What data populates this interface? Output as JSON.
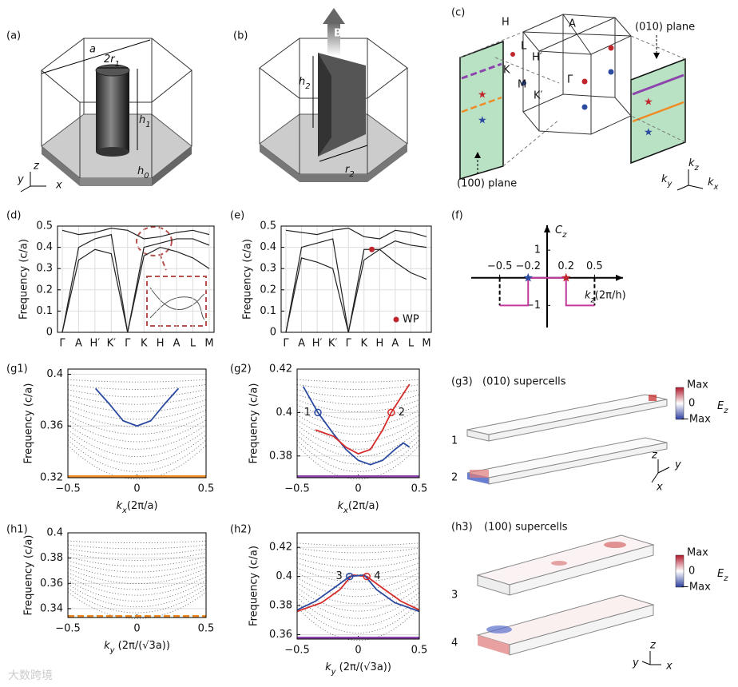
{
  "figure": {
    "a": {
      "label": "(a)",
      "lattice": "a",
      "diameter": {
        "main": "2r",
        "sub": "1"
      },
      "height": {
        "main": "h",
        "sub": "1"
      },
      "base": {
        "main": "h",
        "sub": "0"
      },
      "axis_z": "z",
      "axis_y": "y",
      "axis_x": "x"
    },
    "b": {
      "label": "(b)",
      "field": "B",
      "height": {
        "main": "h",
        "sub": "2"
      },
      "radius": {
        "main": "r",
        "sub": "2"
      }
    },
    "c": {
      "label": "(c)",
      "H": "H",
      "A": "A",
      "H_prime": "H′",
      "K": "K",
      "M": "M",
      "Gamma": "Γ",
      "K_prime": "K′",
      "L": "L",
      "plane_010": "(010) plane",
      "plane_100": "(100) plane",
      "kz": {
        "main": "k",
        "sub": "z"
      },
      "ky": {
        "main": "k",
        "sub": "y"
      },
      "kx": {
        "main": "k",
        "sub": "x"
      }
    },
    "g3": {
      "label": "(g3)",
      "title": "(010) supercells",
      "cell_1": "1",
      "cell_2": "2",
      "cb_max": "Max",
      "cb_zero": "0",
      "cb_min": "−Max",
      "field": {
        "main": "E",
        "sub": "z"
      },
      "axis_z": "z",
      "axis_y": "y",
      "axis_x": "x"
    },
    "h3": {
      "label": "(h3)",
      "title": "(100) supercells",
      "cell_3": "3",
      "cell_4": "4",
      "cb_max": "Max",
      "cb_zero": "0",
      "cb_min": "−Max",
      "field": {
        "main": "E",
        "sub": "z"
      },
      "axis_z": "z",
      "axis_y": "y",
      "axis_x": "x"
    },
    "watermark": "大数跨境"
  },
  "chart_data": [
    {
      "type": "band",
      "panel_label": "(d)",
      "ylabel": "Frequency (c/a)",
      "categories": [
        "Γ",
        "A",
        "H′",
        "K′",
        "Γ",
        "K",
        "H",
        "A",
        "L",
        "M"
      ],
      "ylim": [
        0,
        0.5
      ],
      "yticks": [
        0,
        0.1,
        0.2,
        0.3,
        0.4,
        0.5
      ],
      "grid": true,
      "series": [
        {
          "color": "#222222",
          "values": [
            0,
            0.34,
            0.39,
            0.37,
            0,
            0.36,
            0.4,
            0.38,
            0.35,
            0.3
          ]
        },
        {
          "color": "#222222",
          "values": [
            0,
            0.4,
            0.44,
            0.46,
            0,
            0.4,
            0.42,
            0.44,
            0.44,
            0.41
          ]
        },
        {
          "color": "#222222",
          "values": [
            0.48,
            0.46,
            0.47,
            0.49,
            0.48,
            0.44,
            0.45,
            0.47,
            0.48,
            0.46
          ]
        }
      ]
    },
    {
      "type": "band",
      "panel_label": "(e)",
      "ylabel": "Frequency (c/a)",
      "categories": [
        "Γ",
        "A",
        "H′",
        "K′",
        "Γ",
        "K",
        "H",
        "A",
        "L",
        "M"
      ],
      "ylim": [
        0,
        0.5
      ],
      "yticks": [
        0,
        0.1,
        0.2,
        0.3,
        0.4,
        0.5
      ],
      "grid": true,
      "series": [
        {
          "color": "#222222",
          "values": [
            0,
            0.35,
            0.33,
            0.3,
            0,
            0.34,
            0.39,
            0.33,
            0.28,
            0.25
          ]
        },
        {
          "color": "#222222",
          "values": [
            0,
            0.4,
            0.42,
            0.44,
            0,
            0.39,
            0.39,
            0.43,
            0.41,
            0.4
          ]
        },
        {
          "color": "#222222",
          "values": [
            0.48,
            0.47,
            0.46,
            0.48,
            0.49,
            0.45,
            0.44,
            0.48,
            0.47,
            0.45
          ]
        }
      ],
      "wp": {
        "name": "WP",
        "color": "#c0272d",
        "value": 0.39
      }
    },
    {
      "type": "step",
      "panel_label": "(f)",
      "ylabel": {
        "main": "C",
        "sub": "z"
      },
      "xlabel": {
        "main": "k",
        "sub": "z",
        "rest": "(2π/h)"
      },
      "xlim": [
        -0.8,
        0.8
      ],
      "ylim": [
        -1.8,
        1.9
      ],
      "xticks": [
        {
          "value": -0.5,
          "label": "−0.5"
        },
        {
          "value": -0.2,
          "label": "−0.2"
        },
        0.2,
        0.5
      ],
      "yticks": [
        1,
        {
          "value": -1,
          "label": "−1"
        }
      ],
      "series": [
        {
          "color": "#c2399b",
          "x": [
            -0.5,
            -0.2,
            -0.2,
            0.2,
            0.2,
            0.5
          ],
          "values": [
            -1,
            -1,
            0,
            0,
            -1,
            -1
          ]
        }
      ],
      "marker": "star",
      "markers": [
        {
          "x": -0.2,
          "y": 0,
          "color": "#2b4aa0"
        },
        {
          "x": 0.2,
          "y": 0,
          "color": "#c0272d"
        }
      ]
    },
    {
      "type": "dispersion",
      "panel_label": "(g1)",
      "ylabel": "Frequency (c/a)",
      "xlabel": {
        "main": "k",
        "sub": "x",
        "rest": "(2π/a)"
      },
      "xlim": [
        -0.5,
        0.5
      ],
      "ylim": [
        0.32,
        0.404
      ],
      "xticks": [
        {
          "value": -0.5,
          "label": "−0.5"
        },
        0,
        0.5
      ],
      "yticks": [
        0.32,
        0.36,
        0.4
      ],
      "grid": true,
      "edge_color": "#f08a24",
      "edge_dashed": false,
      "series": [
        {
          "color": "#2b4aa0",
          "x": [
            -0.3,
            -0.2,
            -0.1,
            0,
            0.1,
            0.2,
            0.3
          ],
          "values": [
            0.389,
            0.377,
            0.364,
            0.36,
            0.364,
            0.377,
            0.389
          ]
        }
      ]
    },
    {
      "type": "dispersion",
      "panel_label": "(g2)",
      "ylabel": "Frequency (c/a)",
      "xlabel": {
        "main": "k",
        "sub": "x",
        "rest": "(2π/a)"
      },
      "xlim": [
        -0.5,
        0.5
      ],
      "ylim": [
        0.37,
        0.42
      ],
      "xticks": [
        {
          "value": -0.5,
          "label": "−0.5"
        },
        0,
        0.5
      ],
      "yticks": [
        0.38,
        0.4,
        0.42
      ],
      "grid": true,
      "edge_color": "#8e44ad",
      "edge_dashed": false,
      "series": [
        {
          "color": "#2b4aa0",
          "x": [
            -0.45,
            -0.33,
            -0.2,
            -0.1,
            0,
            0.1,
            0.2,
            0.3,
            0.37,
            0.42
          ],
          "values": [
            0.412,
            0.4,
            0.39,
            0.383,
            0.378,
            0.376,
            0.378,
            0.383,
            0.386,
            0.384
          ]
        },
        {
          "color": "#d62b2b",
          "x": [
            -0.35,
            -0.2,
            -0.1,
            0,
            0.1,
            0.2,
            0.27,
            0.35,
            0.42
          ],
          "values": [
            0.392,
            0.389,
            0.384,
            0.381,
            0.383,
            0.392,
            0.4,
            0.407,
            0.413
          ]
        }
      ],
      "marker": "circle",
      "markers": [
        {
          "label": "1",
          "x": -0.33,
          "y": 0.4,
          "color": "#2b4aa0"
        },
        {
          "label": "2",
          "x": 0.27,
          "y": 0.4,
          "color": "#d62b2b"
        }
      ]
    },
    {
      "type": "dispersion",
      "panel_label": "(h1)",
      "ylabel": "Frequency (c/a)",
      "xlabel": {
        "main": "k",
        "sub": "y",
        "rest": " (2π/(√3a))"
      },
      "xlim": [
        -0.5,
        0.5
      ],
      "ylim": [
        0.333,
        0.4
      ],
      "xticks": [
        {
          "value": -0.5,
          "label": "−0.5"
        },
        0,
        0.5
      ],
      "yticks": [
        0.34,
        0.36,
        0.38,
        0.4
      ],
      "grid": true,
      "edge_color": "#f08a24",
      "edge_dashed": true,
      "series": []
    },
    {
      "type": "dispersion",
      "panel_label": "(h2)",
      "ylabel": "Frequency (c/a)",
      "xlabel": {
        "main": "k",
        "sub": "y",
        "rest": " (2π/(√3a))"
      },
      "xlim": [
        -0.5,
        0.5
      ],
      "ylim": [
        0.357,
        0.43
      ],
      "xticks": [
        {
          "value": -0.5,
          "label": "−0.5"
        },
        0,
        0.5
      ],
      "yticks": [
        0.36,
        0.38,
        0.4,
        0.42
      ],
      "grid": true,
      "edge_color": "#8e44ad",
      "edge_dashed": false,
      "series": [
        {
          "color": "#d62b2b",
          "x": [
            -0.5,
            -0.3,
            -0.15,
            -0.05,
            0.07,
            0.2,
            0.35,
            0.5
          ],
          "values": [
            0.376,
            0.382,
            0.391,
            0.401,
            0.4,
            0.392,
            0.383,
            0.377
          ]
        },
        {
          "color": "#2b4aa0",
          "x": [
            -0.5,
            -0.35,
            -0.2,
            -0.07,
            0.05,
            0.15,
            0.3,
            0.5
          ],
          "values": [
            0.377,
            0.383,
            0.392,
            0.4,
            0.401,
            0.391,
            0.382,
            0.376
          ]
        }
      ],
      "marker": "circle",
      "markers": [
        {
          "label": "3",
          "x": -0.07,
          "y": 0.4,
          "color": "#2b4aa0"
        },
        {
          "label": "4",
          "x": 0.07,
          "y": 0.4,
          "color": "#d62b2b"
        }
      ]
    }
  ]
}
